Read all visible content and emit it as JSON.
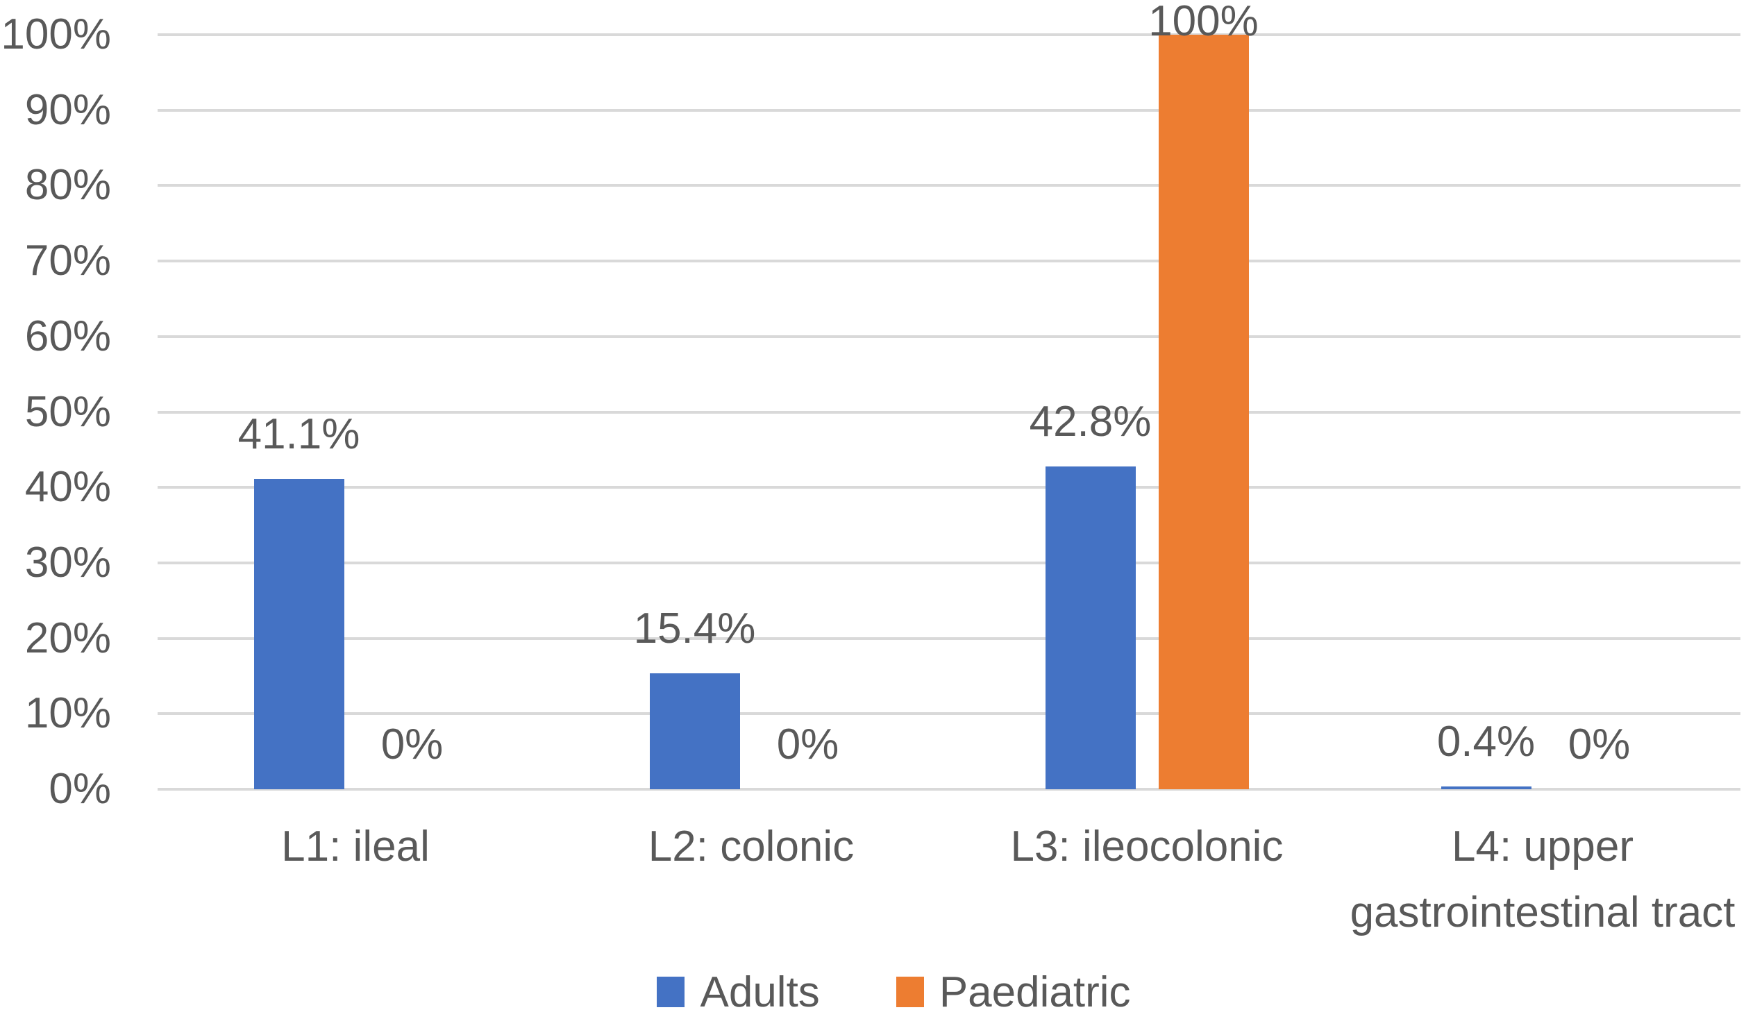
{
  "chart_data": {
    "type": "bar",
    "title": "",
    "xlabel": "",
    "ylabel": "",
    "ylim": [
      0,
      100
    ],
    "grid": "horizontal",
    "legend_position": "bottom-center",
    "background_color": "#FFFFFF",
    "gridline_color": "#D9D9D9",
    "text_color": "#595959",
    "categories": [
      "L1: ileal",
      "L2: colonic",
      "L3: ileocolonic",
      "L4: upper\ngastrointestinal tract"
    ],
    "y_axis": {
      "ticks": [
        "0%",
        "10%",
        "20%",
        "30%",
        "40%",
        "50%",
        "60%",
        "70%",
        "80%",
        "90%",
        "100%"
      ]
    },
    "series": [
      {
        "name": "Adults",
        "color": "#4472C4",
        "values": [
          41.1,
          15.4,
          42.8,
          0.4
        ],
        "labels": [
          "41.1%",
          "15.4%",
          "42.8%",
          "0.4%"
        ]
      },
      {
        "name": "Paediatric",
        "color": "#ED7D31",
        "values": [
          0,
          0,
          100,
          0
        ],
        "labels": [
          "0%",
          "0%",
          "100%",
          "0%"
        ]
      }
    ]
  }
}
